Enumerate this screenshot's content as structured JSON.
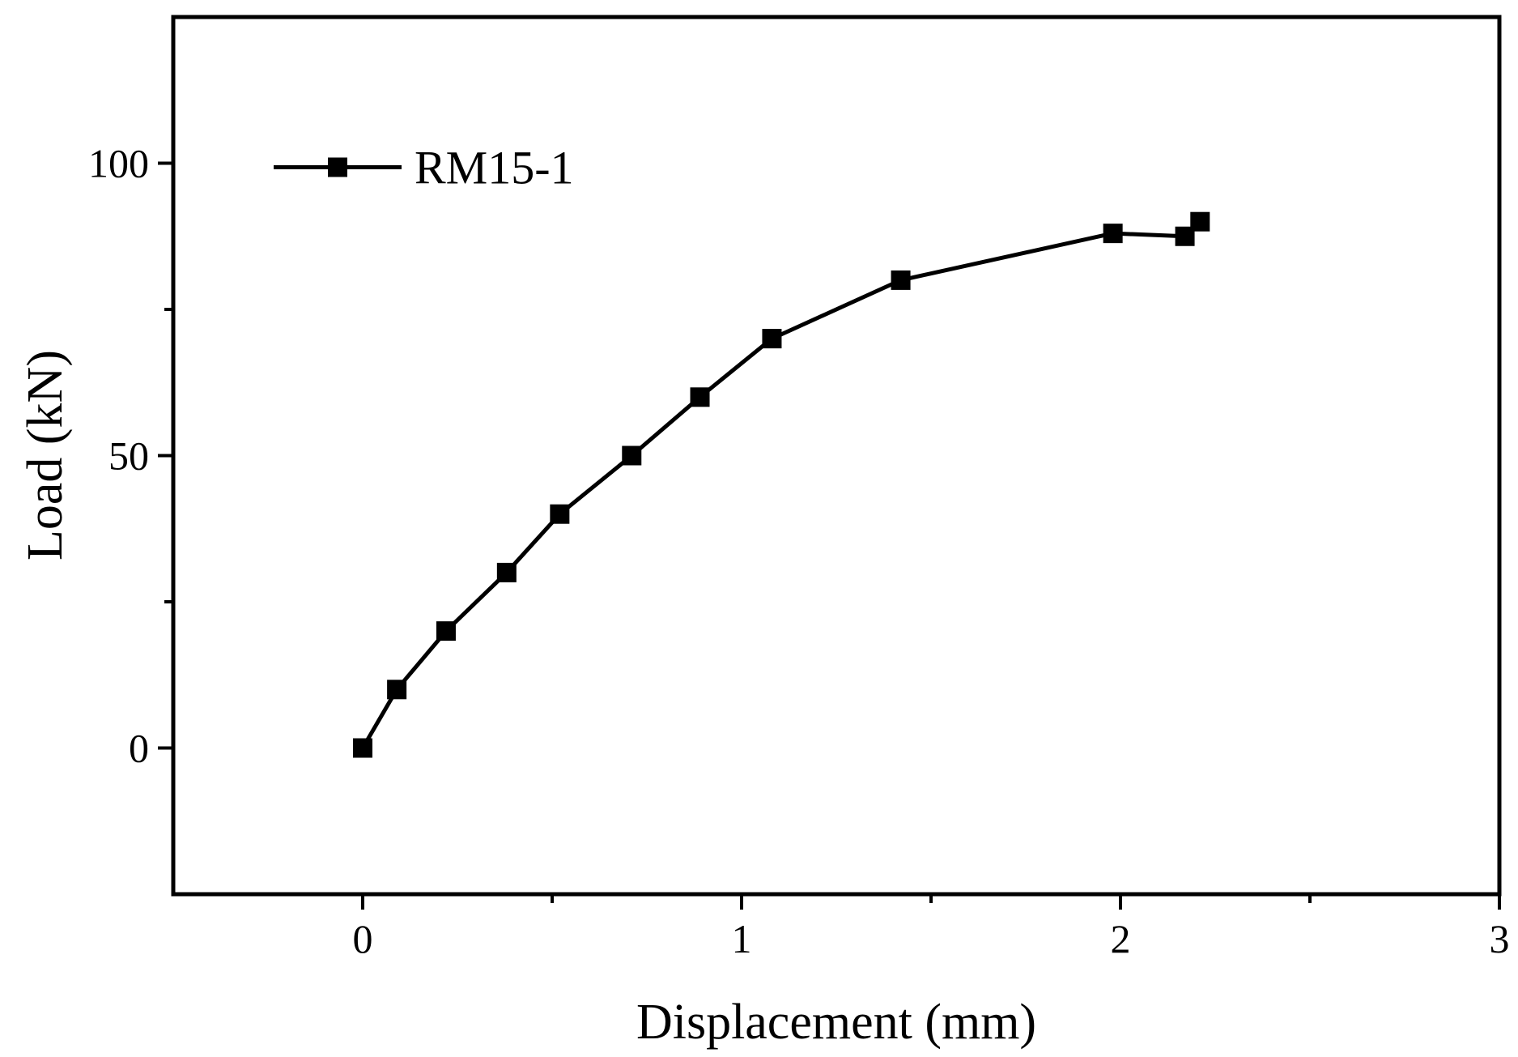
{
  "chart_data": {
    "type": "line",
    "title": "",
    "xlabel": "Displacement (mm)",
    "ylabel": "Load (kN)",
    "xlim": [
      -0.5,
      3
    ],
    "ylim": [
      -25,
      125
    ],
    "xticks": [
      0,
      1,
      2,
      3
    ],
    "xticks_minor": [
      0.5,
      1.5,
      2.5
    ],
    "yticks": [
      0,
      50,
      100
    ],
    "yticks_minor": [
      25,
      75
    ],
    "grid": false,
    "legend_position": "top-left",
    "colors": {
      "line": "#000000",
      "marker": "#000000"
    },
    "series": [
      {
        "name": "RM15-1",
        "marker": "square",
        "x": [
          0,
          0.09,
          0.22,
          0.38,
          0.52,
          0.71,
          0.89,
          1.08,
          1.42,
          1.98,
          2.17,
          2.21
        ],
        "y": [
          0,
          10,
          20,
          30,
          40,
          50,
          60,
          70,
          80,
          88,
          87.5,
          90
        ]
      }
    ]
  }
}
